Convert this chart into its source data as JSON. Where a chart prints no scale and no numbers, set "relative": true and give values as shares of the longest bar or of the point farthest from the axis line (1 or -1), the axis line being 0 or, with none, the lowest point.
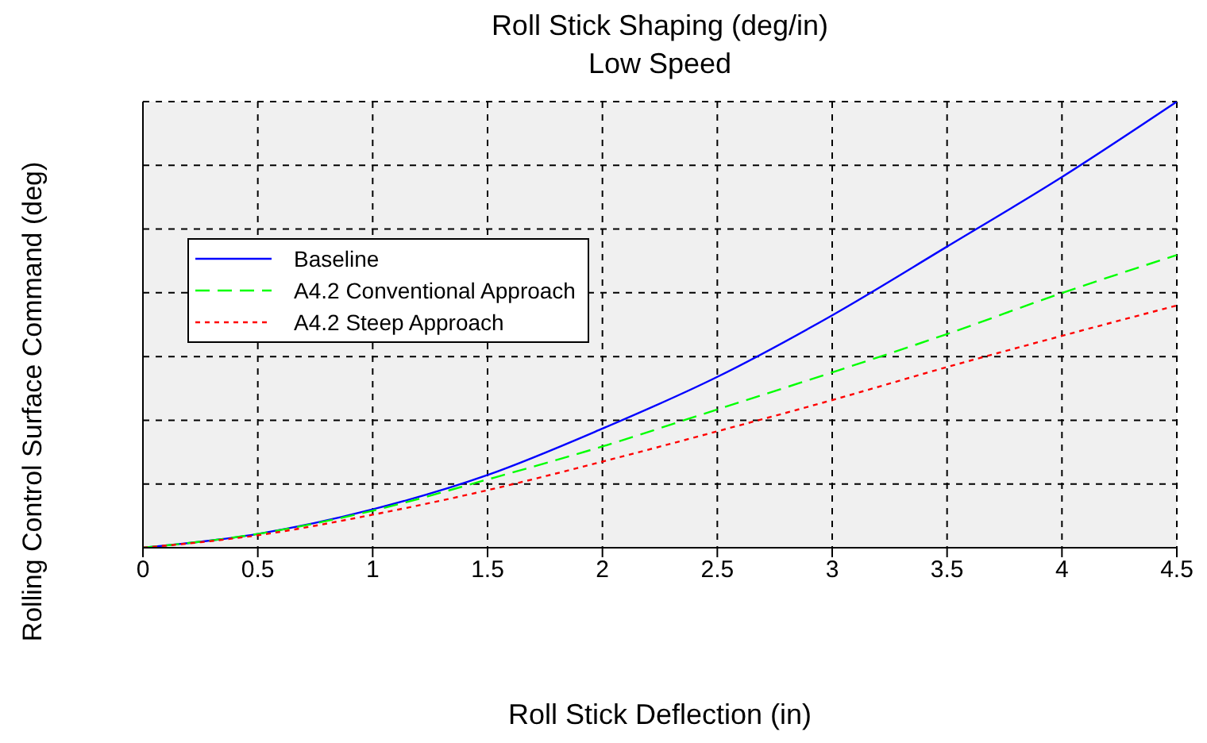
{
  "chart_data": {
    "type": "line",
    "title": "Roll Stick Shaping (deg/in)",
    "subtitle": "Low Speed",
    "xlabel": "Roll Stick Deflection (in)",
    "ylabel": "Rolling Control Surface Command (deg)",
    "relative": true,
    "x": [
      0,
      0.5,
      1,
      1.5,
      2,
      2.5,
      3,
      3.5,
      4,
      4.5
    ],
    "xlim": [
      0,
      4.5
    ],
    "xticks": [
      0,
      0.5,
      1,
      1.5,
      2,
      2.5,
      3,
      3.5,
      4,
      4.5
    ],
    "tick_labels": "x",
    "grid": true,
    "legend": "top left",
    "marker": "none",
    "series": [
      {
        "name": "Baseline",
        "color": "#0000ff",
        "line_style": "solid",
        "values": [
          0,
          0.031,
          0.086,
          0.163,
          0.267,
          0.383,
          0.521,
          0.675,
          0.831,
          1
        ]
      },
      {
        "name": "A4.2 Conventional Approach",
        "color": "#00ff00",
        "line_style": "dashed",
        "values": [
          0,
          0.031,
          0.083,
          0.153,
          0.227,
          0.31,
          0.393,
          0.479,
          0.571,
          0.656
        ]
      },
      {
        "name": "A4.2 Steep Approach",
        "color": "#ff0000",
        "line_style": "dotted",
        "values": [
          0,
          0.028,
          0.074,
          0.129,
          0.193,
          0.261,
          0.331,
          0.405,
          0.475,
          0.543
        ]
      }
    ]
  }
}
